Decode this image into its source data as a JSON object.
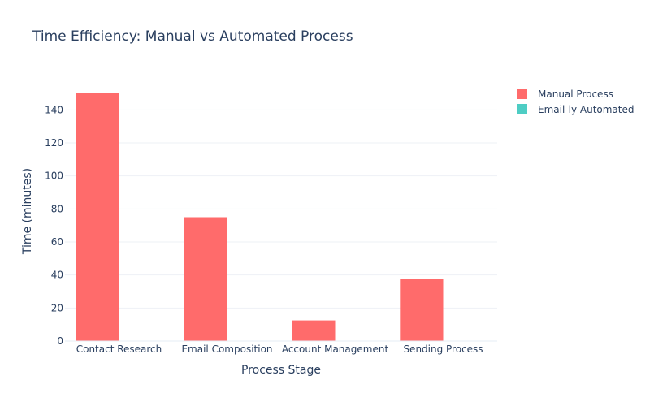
{
  "chart_data": {
    "type": "bar",
    "title": "Time Efficiency: Manual vs Automated Process",
    "xlabel": "Process Stage",
    "ylabel": "Time (minutes)",
    "categories": [
      "Contact Research",
      "Email Composition",
      "Account Management",
      "Sending Process"
    ],
    "series": [
      {
        "name": "Manual Process",
        "color": "#ff6b6b",
        "values": [
          150,
          75,
          12.5,
          37.5
        ]
      },
      {
        "name": "Email-ly Automated",
        "color": "#4ecdc4",
        "values": [
          0,
          0,
          0,
          0
        ]
      }
    ],
    "ylim": [
      0,
      150
    ],
    "yticks": [
      0,
      20,
      40,
      60,
      80,
      100,
      120,
      140
    ],
    "grid": true,
    "legend_position": "top-right"
  }
}
